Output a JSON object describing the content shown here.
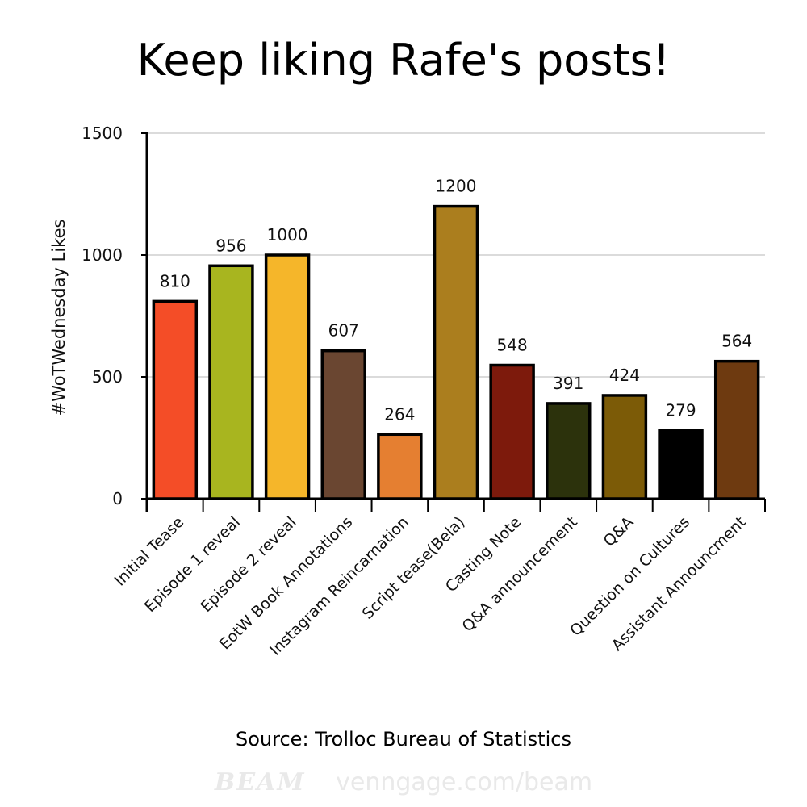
{
  "title": "Keep liking Rafe's posts!",
  "source": "Source: Trolloc Bureau of Statistics",
  "watermark": {
    "logo": "BEAM",
    "url": "venngage.com/beam"
  },
  "chart_data": {
    "type": "bar",
    "ylabel": "#WoTWednesday Likes",
    "xlabel": "",
    "ylim": [
      0,
      1500
    ],
    "yticks": [
      0,
      500,
      1000,
      1500
    ],
    "grid": true,
    "categories": [
      "Initial Tease",
      "Episode 1 reveal",
      "Episode 2 reveal",
      "EotW Book Annotations",
      "Instagram Reincarnation",
      "Script tease(Bela)",
      "Casting Note",
      "Q&A announcement",
      "Q&A",
      "Question on Cultures",
      "Assistant Announcment"
    ],
    "values": [
      810,
      956,
      1000,
      607,
      264,
      1200,
      548,
      391,
      424,
      279,
      564
    ],
    "data_labels": [
      "810",
      "956",
      "1000",
      "607",
      "264",
      "1200",
      "548",
      "391",
      "424",
      "279",
      "564"
    ],
    "colors": [
      "#f44d27",
      "#a8b51f",
      "#f5b62a",
      "#6a4631",
      "#e57f31",
      "#ab7e1e",
      "#7d1a0c",
      "#2c320c",
      "#7c5b07",
      "#000000",
      "#6e3a10"
    ]
  }
}
